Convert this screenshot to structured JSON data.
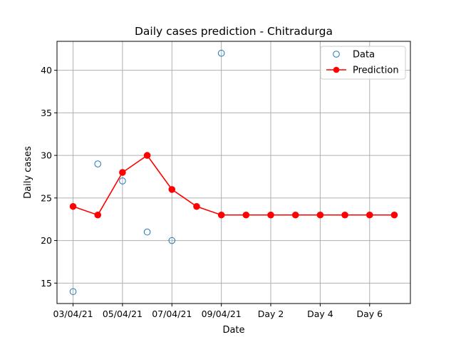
{
  "chart_data": {
    "type": "line",
    "title": "Daily cases prediction - Chitradurga",
    "xlabel": "Date",
    "ylabel": "Daily cases",
    "x_tick_labels": [
      "03/04/21",
      "05/04/21",
      "07/04/21",
      "09/04/21",
      "Day 2",
      "Day 4",
      "Day 6"
    ],
    "x_tick_positions": [
      0,
      2,
      4,
      6,
      8,
      10,
      12
    ],
    "ylim": [
      12.6,
      43.4
    ],
    "y_ticks": [
      15,
      20,
      25,
      30,
      35,
      40
    ],
    "grid": true,
    "legend_position": "top-right",
    "series": [
      {
        "name": "Data",
        "style": "hollow-circle",
        "color": "#1f77b4",
        "x": [
          0,
          1,
          2,
          3,
          4,
          6
        ],
        "y": [
          14,
          29,
          27,
          21,
          20,
          42
        ]
      },
      {
        "name": "Prediction",
        "style": "line-dot",
        "color": "#ff0000",
        "x": [
          0,
          1,
          2,
          3,
          4,
          5,
          6,
          7,
          8,
          9,
          10,
          11,
          12,
          13
        ],
        "y": [
          24,
          23,
          28,
          30,
          26,
          24,
          23,
          23,
          23,
          23,
          23,
          23,
          23,
          23
        ]
      }
    ]
  }
}
